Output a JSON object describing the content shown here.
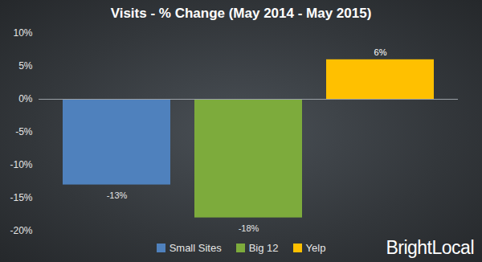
{
  "chart_data": {
    "type": "bar",
    "title": "Visits - % Change (May 2014 - May 2015)",
    "categories": [
      "Small Sites",
      "Big 12",
      "Yelp"
    ],
    "values": [
      -13,
      -18,
      6
    ],
    "value_labels": [
      "-13%",
      "-18%",
      "6%"
    ],
    "colors": [
      "#4f81bd",
      "#7dab3c",
      "#ffc000"
    ],
    "ylim": [
      -20,
      10
    ],
    "yticks": [
      {
        "value": -20,
        "label": "-20%"
      },
      {
        "value": -15,
        "label": "-15%"
      },
      {
        "value": -10,
        "label": "-10%"
      },
      {
        "value": -5,
        "label": "-5%"
      },
      {
        "value": 0,
        "label": "0%"
      },
      {
        "value": 5,
        "label": "5%"
      },
      {
        "value": 10,
        "label": "10%"
      }
    ],
    "grid": false,
    "data_labels": true,
    "tick_labels": "y",
    "legend": "bottom",
    "annotations": [
      "BrightLocal"
    ]
  }
}
